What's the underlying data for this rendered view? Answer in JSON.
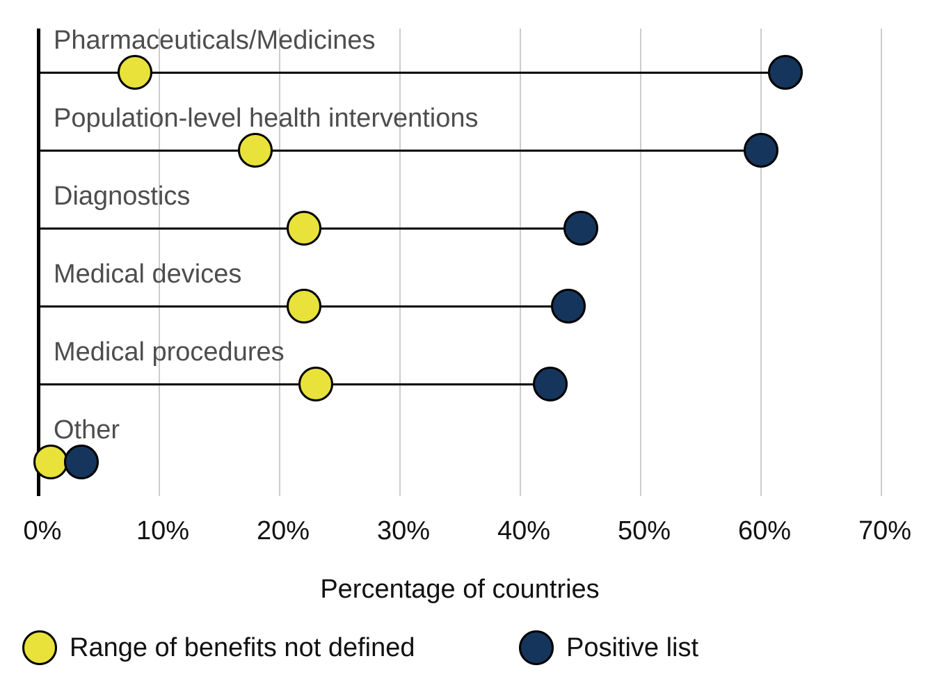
{
  "chart_data": {
    "type": "dumbbell",
    "title": "",
    "xlabel": "Percentage of countries",
    "ylabel": "",
    "xlim": [
      0,
      70
    ],
    "x_tick_labels": [
      "0%",
      "10%",
      "20%",
      "30%",
      "40%",
      "50%",
      "60%",
      "70%"
    ],
    "x_tick_values": [
      0,
      10,
      20,
      30,
      40,
      50,
      60,
      70
    ],
    "grid": "vertical-only",
    "legend_position": "bottom",
    "categories": [
      "Pharmaceuticals/Medicines",
      "Population-level health interventions",
      "Diagnostics",
      "Medical devices",
      "Medical procedures",
      "Other"
    ],
    "series": [
      {
        "name": "Range of benefits not defined",
        "color": "#e8e23b",
        "values": [
          8,
          18,
          22,
          22,
          23,
          1
        ]
      },
      {
        "name": "Positive list",
        "color": "#16355c",
        "values": [
          62,
          60,
          45,
          44,
          42.5,
          3.5
        ]
      }
    ],
    "colors": {
      "axis": "#000000",
      "gridline": "#cccccc",
      "category_label": "#4d4d4d",
      "tick_label": "#111111",
      "dot_border": "#000000"
    }
  }
}
